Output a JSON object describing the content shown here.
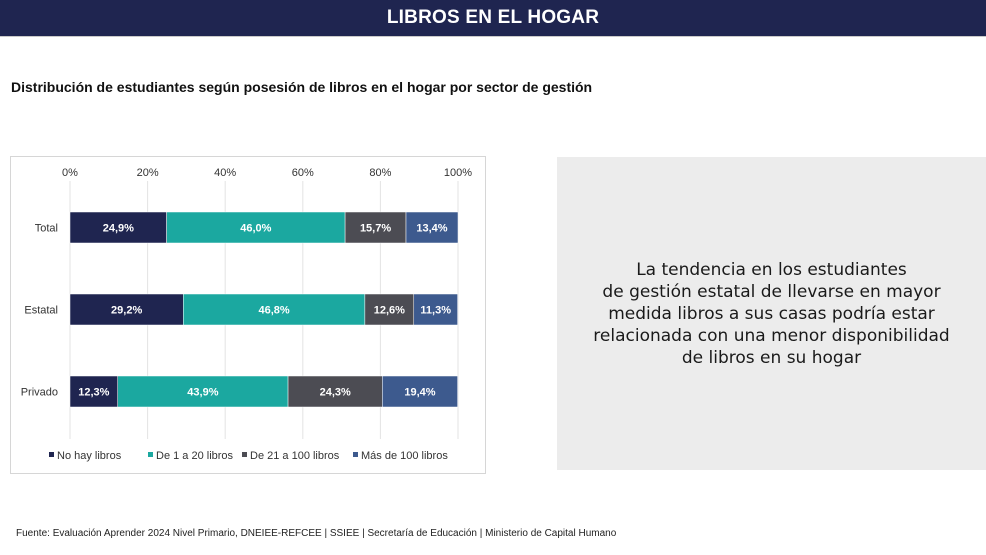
{
  "header": {
    "title": "LIBROS EN EL HOGAR"
  },
  "subtitle": "Distribución de estudiantes según posesión de libros en el hogar por sector de gestión",
  "chart_data": {
    "type": "bar",
    "orientation": "horizontal",
    "stacked": true,
    "categories": [
      "Total",
      "Estatal",
      "Privado"
    ],
    "series": [
      {
        "name": "No hay libros",
        "values": [
          24.9,
          29.2,
          12.3
        ],
        "labels": [
          "24,9%",
          "29,2%",
          "12,3%"
        ],
        "color": "#1f2550"
      },
      {
        "name": "De 1 a 20 libros",
        "values": [
          46.0,
          46.8,
          43.9
        ],
        "labels": [
          "46,0%",
          "46,8%",
          "43,9%"
        ],
        "color": "#1ba8a0"
      },
      {
        "name": "De 21 a 100 libros",
        "values": [
          15.7,
          12.6,
          24.3
        ],
        "labels": [
          "15,7%",
          "12,6%",
          "24,3%"
        ],
        "color": "#4c4c53"
      },
      {
        "name": "Más de 100 libros",
        "values": [
          13.4,
          11.3,
          19.4
        ],
        "labels": [
          "13,4%",
          "11,3%",
          "19,4%"
        ],
        "color": "#3d5a8e"
      }
    ],
    "x_ticks": [
      "0%",
      "20%",
      "40%",
      "60%",
      "80%",
      "100%"
    ],
    "xlim": [
      0,
      100
    ],
    "grid": true,
    "legend_position": "bottom"
  },
  "note": {
    "lines": [
      "La tendencia en los estudiantes",
      "de gestión estatal de llevarse en mayor",
      "medida libros a sus casas podría estar",
      "relacionada con una menor disponibilidad",
      "de libros en su hogar"
    ]
  },
  "footer": "Fuente: Evaluación Aprender 2024 Nivel Primario, DNEIEE-REFCEE | SSIEE | Secretaría de Educación | Ministerio de Capital Humano"
}
